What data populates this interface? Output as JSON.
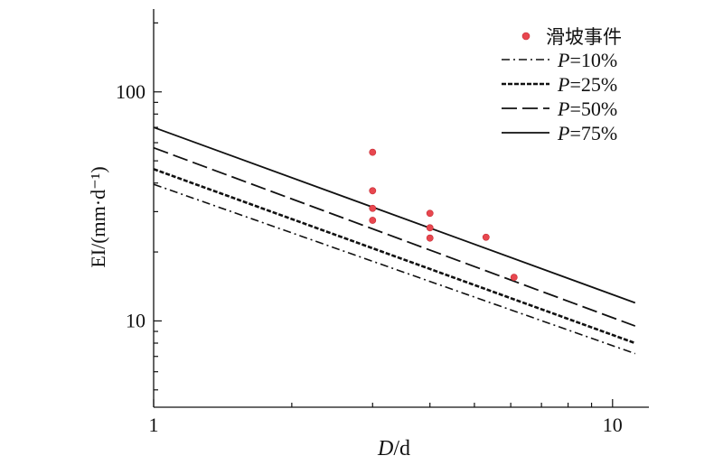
{
  "chart_data": {
    "type": "scatter",
    "x_scale": "log",
    "y_scale": "log",
    "xlim": [
      1,
      12
    ],
    "ylim": [
      4.2,
      230
    ],
    "xlabel": {
      "italic": "D",
      "rest": "/d"
    },
    "ylabel": "EI/(mm·d⁻¹)",
    "x_ticks": [
      {
        "value": 1,
        "label": "1"
      },
      {
        "value": 10,
        "label": "10"
      }
    ],
    "y_ticks": [
      {
        "value": 10,
        "label": "10"
      },
      {
        "value": 100,
        "label": "100"
      }
    ],
    "grid": false,
    "legend_position": "top-right",
    "points": {
      "name": "滑坡事件",
      "color": "#e8474f",
      "x": [
        3,
        3,
        3,
        3,
        4,
        4,
        4,
        5.3,
        6.1
      ],
      "y": [
        54.5,
        37,
        31,
        27.5,
        29.5,
        25.5,
        23,
        23.2,
        15.5
      ]
    },
    "series": [
      {
        "name": "P=10%",
        "italic": "P",
        "rest": "=10%",
        "style": "dash-dot",
        "x": [
          1,
          11.2
        ],
        "y": [
          39.5,
          7.2
        ]
      },
      {
        "name": "P=25%",
        "italic": "P",
        "rest": "=25%",
        "style": "short-dash",
        "x": [
          1,
          11.2
        ],
        "y": [
          46,
          8.0
        ]
      },
      {
        "name": "P=50%",
        "italic": "P",
        "rest": "=50%",
        "style": "long-dash",
        "x": [
          1,
          11.2
        ],
        "y": [
          57,
          9.5
        ]
      },
      {
        "name": "P=75%",
        "italic": "P",
        "rest": "=75%",
        "style": "solid",
        "x": [
          1,
          11.2
        ],
        "y": [
          70,
          12.0
        ]
      }
    ]
  }
}
